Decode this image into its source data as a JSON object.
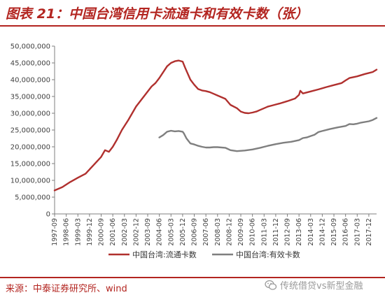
{
  "header": {
    "title": "图表 21：中国台湾信用卡流通卡和有效卡数（张）"
  },
  "footer": {
    "source": "来源：中泰证券研究所、wind"
  },
  "watermark": {
    "icon": "wechat-icon",
    "text": "传统借贷vs新型金融"
  },
  "colors": {
    "accent": "#b32520",
    "series1": "#b0302e",
    "series2": "#7f7f7f",
    "axis": "#7f7f7f"
  },
  "chart_data": {
    "type": "line",
    "title": "",
    "xlabel": "",
    "ylabel": "",
    "ylim": [
      0,
      50000000
    ],
    "grid": false,
    "legend_position": "bottom",
    "y_ticks": [
      "0",
      "5,000,000",
      "10,000,000",
      "15,000,000",
      "20,000,000",
      "25,000,000",
      "30,000,000",
      "35,000,000",
      "40,000,000",
      "45,000,000",
      "50,000,000"
    ],
    "x_ticks": [
      "1997-09",
      "1998-06",
      "1999-03",
      "1999-12",
      "2000-09",
      "2001-06",
      "2002-03",
      "2002-12",
      "2003-09",
      "2004-06",
      "2005-03",
      "2005-12",
      "2006-09",
      "2007-06",
      "2008-03",
      "2008-12",
      "2009-09",
      "2010-06",
      "2011-03",
      "2011-12",
      "2012-09",
      "2013-06",
      "2014-03",
      "2014-12",
      "2015-09",
      "2016-06",
      "2017-03",
      "2017-12"
    ],
    "series": [
      {
        "name": "中国台湾:流通卡数",
        "x": [
          "1997-09",
          "1998-03",
          "1998-09",
          "1999-03",
          "1999-09",
          "2000-03",
          "2000-09",
          "2000-12",
          "2001-03",
          "2001-06",
          "2001-09",
          "2002-01",
          "2002-06",
          "2002-12",
          "2003-06",
          "2003-12",
          "2004-03",
          "2004-06",
          "2004-12",
          "2005-03",
          "2005-06",
          "2005-09",
          "2005-12",
          "2006-02",
          "2006-06",
          "2006-09",
          "2006-12",
          "2007-03",
          "2007-06",
          "2007-09",
          "2007-12",
          "2008-03",
          "2008-09",
          "2009-01",
          "2009-06",
          "2009-09",
          "2009-12",
          "2010-03",
          "2010-06",
          "2010-09",
          "2010-12",
          "2011-03",
          "2011-06",
          "2011-09",
          "2011-12",
          "2012-03",
          "2012-09",
          "2013-03",
          "2013-06",
          "2013-07",
          "2013-09",
          "2014-03",
          "2014-09",
          "2015-03",
          "2015-09",
          "2016-03",
          "2016-06",
          "2016-09",
          "2017-03",
          "2017-09",
          "2017-12",
          "2018-03",
          "2018-06"
        ],
        "values": [
          7000000,
          8000000,
          9500000,
          10800000,
          12000000,
          14500000,
          17000000,
          19000000,
          18500000,
          20000000,
          22000000,
          25000000,
          28000000,
          32000000,
          35000000,
          38000000,
          39000000,
          40500000,
          44000000,
          45000000,
          45500000,
          45700000,
          45400000,
          43500000,
          40000000,
          38500000,
          37200000,
          36800000,
          36600000,
          36300000,
          35800000,
          35300000,
          34300000,
          32500000,
          31500000,
          30500000,
          30100000,
          30000000,
          30200000,
          30500000,
          31000000,
          31500000,
          32000000,
          32300000,
          32600000,
          32900000,
          33600000,
          34400000,
          35500000,
          36700000,
          35900000,
          36500000,
          37100000,
          37800000,
          38400000,
          39000000,
          39800000,
          40500000,
          41000000,
          41700000,
          42000000,
          42300000,
          43000000
        ]
      },
      {
        "name": "中国台湾:有效卡数",
        "x": [
          "2004-06",
          "2004-09",
          "2004-12",
          "2005-03",
          "2005-06",
          "2005-09",
          "2005-12",
          "2006-01",
          "2006-03",
          "2006-06",
          "2006-09",
          "2006-12",
          "2007-03",
          "2007-06",
          "2007-09",
          "2007-12",
          "2008-03",
          "2008-09",
          "2009-01",
          "2009-06",
          "2009-12",
          "2010-06",
          "2010-12",
          "2011-06",
          "2011-12",
          "2012-06",
          "2012-12",
          "2013-06",
          "2013-09",
          "2013-12",
          "2014-03",
          "2014-06",
          "2014-09",
          "2014-12",
          "2015-06",
          "2015-12",
          "2016-06",
          "2016-09",
          "2016-12",
          "2017-03",
          "2017-06",
          "2017-12",
          "2018-03",
          "2018-06"
        ],
        "values": [
          22800000,
          23500000,
          24500000,
          24800000,
          24600000,
          24700000,
          24500000,
          24000000,
          22500000,
          21000000,
          20700000,
          20300000,
          20000000,
          19800000,
          19800000,
          19900000,
          19900000,
          19700000,
          19000000,
          18700000,
          18900000,
          19200000,
          19700000,
          20300000,
          20800000,
          21200000,
          21500000,
          22000000,
          22600000,
          22800000,
          23200000,
          23600000,
          24400000,
          24700000,
          25300000,
          25800000,
          26200000,
          26800000,
          26700000,
          26900000,
          27200000,
          27600000,
          28000000,
          28600000
        ]
      }
    ]
  }
}
